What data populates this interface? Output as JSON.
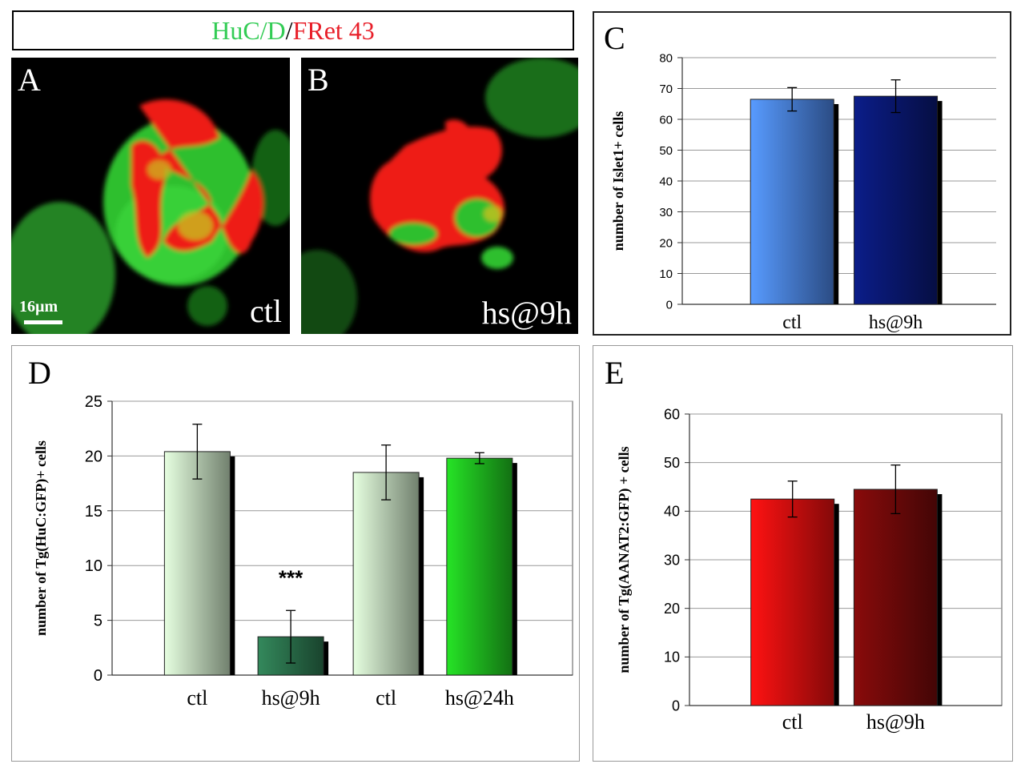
{
  "header": {
    "green_label": "HuC/D",
    "slash": "/",
    "red_label": "FRet 43",
    "green_color": "#33cc55",
    "red_color": "#e8202a"
  },
  "micrographs": [
    {
      "letter": "A",
      "condition": "ctl",
      "scale_label": "16µm"
    },
    {
      "letter": "B",
      "condition": "hs@9h"
    }
  ],
  "chart_data": [
    {
      "panel": "C",
      "type": "bar",
      "ylabel": "number of Islet1+ cells",
      "ylim": [
        0,
        80
      ],
      "yticks": [
        0,
        10,
        20,
        30,
        40,
        50,
        60,
        70,
        80
      ],
      "categories": [
        "ctl",
        "hs@9h"
      ],
      "values": [
        66.5,
        67.5
      ],
      "errors": [
        3.8,
        5.3
      ],
      "colors": [
        "#4f8af0",
        "#0a1a7a"
      ],
      "grid": true
    },
    {
      "panel": "D",
      "type": "bar",
      "ylabel": "number of Tg(HuC:GFP)+ cells",
      "ylim": [
        0,
        25
      ],
      "yticks": [
        0,
        5,
        10,
        15,
        20,
        25
      ],
      "categories": [
        "ctl",
        "hs@9h",
        "ctl",
        "hs@24h"
      ],
      "values": [
        20.4,
        3.5,
        18.5,
        19.8
      ],
      "errors": [
        2.5,
        2.4,
        2.5,
        0.5
      ],
      "colors": [
        "#cde8c8",
        "#2e7a52",
        "#cde8c8",
        "#22cc22"
      ],
      "annotations": [
        {
          "category_index": 1,
          "text": "***"
        }
      ],
      "grid": true
    },
    {
      "panel": "E",
      "type": "bar",
      "ylabel": "number of Tg(AANAT2:GFP) + cells",
      "ylim": [
        0,
        60
      ],
      "yticks": [
        0,
        10,
        20,
        30,
        40,
        50,
        60
      ],
      "categories": [
        "ctl",
        "hs@9h"
      ],
      "values": [
        42.5,
        44.5
      ],
      "errors": [
        3.7,
        5.0
      ],
      "colors": [
        "#f01010",
        "#7a0a0a"
      ],
      "grid": true
    }
  ]
}
